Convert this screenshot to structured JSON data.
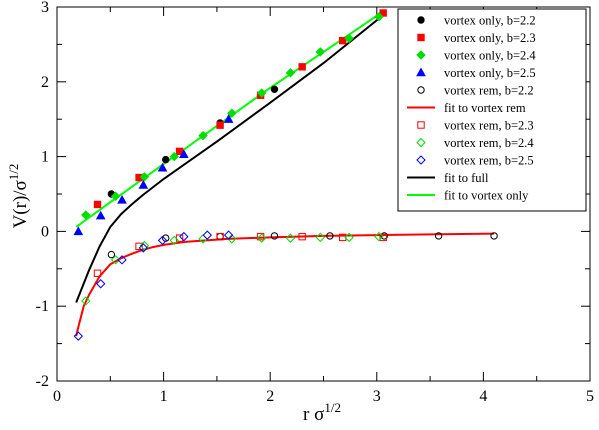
{
  "chart_data": {
    "type": "scatter",
    "xlabel": {
      "main": "r σ",
      "sup": "1/2"
    },
    "ylabel": {
      "main": "V(r)/σ",
      "sup": "1/2"
    },
    "xlim": [
      0,
      5
    ],
    "ylim": [
      -2,
      3
    ],
    "xticks": [
      "0",
      "1",
      "2",
      "3",
      "4",
      "5"
    ],
    "yticks": [
      "-2",
      "-1",
      "0",
      "1",
      "2",
      "3"
    ],
    "legend_position": "top-right",
    "grid": false,
    "series": [
      {
        "name": "vortex only, b=2.2",
        "kind": "points",
        "marker": "circle-filled",
        "color": "#000000",
        "points": [
          [
            0.51,
            0.5
          ],
          [
            1.02,
            0.96
          ],
          [
            1.53,
            1.45
          ],
          [
            2.04,
            1.9
          ]
        ]
      },
      {
        "name": "vortex only, b=2.3",
        "kind": "points",
        "marker": "square-filled",
        "color": "#ff0000",
        "points": [
          [
            0.38,
            0.36
          ],
          [
            0.77,
            0.72
          ],
          [
            1.15,
            1.07
          ],
          [
            1.53,
            1.42
          ],
          [
            1.91,
            1.82
          ],
          [
            2.3,
            2.2
          ],
          [
            2.68,
            2.55
          ],
          [
            3.06,
            2.92
          ]
        ]
      },
      {
        "name": "vortex only, b=2.4",
        "kind": "points",
        "marker": "diamond-filled",
        "color": "#00dd00",
        "points": [
          [
            0.27,
            0.22
          ],
          [
            0.55,
            0.47
          ],
          [
            0.82,
            0.73
          ],
          [
            1.1,
            1.0
          ],
          [
            1.37,
            1.28
          ],
          [
            1.64,
            1.58
          ],
          [
            1.92,
            1.85
          ],
          [
            2.19,
            2.12
          ],
          [
            2.47,
            2.4
          ],
          [
            2.74,
            2.58
          ],
          [
            3.02,
            2.87
          ]
        ]
      },
      {
        "name": "vortex only, b=2.5",
        "kind": "points",
        "marker": "triangle-filled",
        "color": "#0000ff",
        "points": [
          [
            0.2,
            0.0
          ],
          [
            0.41,
            0.21
          ],
          [
            0.61,
            0.42
          ],
          [
            0.81,
            0.62
          ],
          [
            0.99,
            0.85
          ],
          [
            1.19,
            1.03
          ],
          [
            1.61,
            1.5
          ]
        ]
      },
      {
        "name": "vortex rem,  b=2.2",
        "kind": "points",
        "marker": "circle-open",
        "color": "#000000",
        "points": [
          [
            0.51,
            -0.31
          ],
          [
            1.02,
            -0.09
          ],
          [
            1.53,
            -0.07
          ],
          [
            2.04,
            -0.06
          ],
          [
            2.56,
            -0.06
          ],
          [
            3.07,
            -0.06
          ],
          [
            3.58,
            -0.06
          ],
          [
            4.1,
            -0.06
          ]
        ]
      },
      {
        "name": "fit to vortex rem",
        "kind": "line",
        "color": "#ff0000",
        "points": [
          [
            0.18,
            -1.4
          ],
          [
            0.2,
            -1.28
          ],
          [
            0.25,
            -1.0
          ],
          [
            0.3,
            -0.85
          ],
          [
            0.4,
            -0.6
          ],
          [
            0.5,
            -0.44
          ],
          [
            0.6,
            -0.36
          ],
          [
            0.7,
            -0.3
          ],
          [
            0.8,
            -0.25
          ],
          [
            0.9,
            -0.21
          ],
          [
            1.0,
            -0.18
          ],
          [
            1.2,
            -0.14
          ],
          [
            1.4,
            -0.12
          ],
          [
            1.6,
            -0.1
          ],
          [
            2.0,
            -0.08
          ],
          [
            2.5,
            -0.06
          ],
          [
            3.0,
            -0.05
          ],
          [
            3.5,
            -0.04
          ],
          [
            4.1,
            -0.03
          ]
        ]
      },
      {
        "name": "vortex rem, b=2.3",
        "kind": "points",
        "marker": "square-open",
        "color": "#ff0000",
        "points": [
          [
            0.38,
            -0.56
          ],
          [
            0.77,
            -0.2
          ],
          [
            1.15,
            -0.09
          ],
          [
            1.53,
            -0.07
          ],
          [
            1.91,
            -0.07
          ],
          [
            2.3,
            -0.07
          ],
          [
            2.68,
            -0.08
          ],
          [
            3.06,
            -0.08
          ]
        ]
      },
      {
        "name": "vortex rem, b=2.4",
        "kind": "points",
        "marker": "diamond-open",
        "color": "#00dd00",
        "points": [
          [
            0.27,
            -0.93
          ],
          [
            0.55,
            -0.38
          ],
          [
            0.82,
            -0.19
          ],
          [
            1.1,
            -0.12
          ],
          [
            1.37,
            -0.1
          ],
          [
            1.64,
            -0.1
          ],
          [
            1.92,
            -0.09
          ],
          [
            2.19,
            -0.09
          ],
          [
            2.47,
            -0.08
          ],
          [
            2.74,
            -0.08
          ],
          [
            3.02,
            -0.07
          ]
        ]
      },
      {
        "name": "vortex rem, b=2.5",
        "kind": "points",
        "marker": "diamond-open",
        "color": "#0000ff",
        "points": [
          [
            0.2,
            -1.4
          ],
          [
            0.41,
            -0.7
          ],
          [
            0.61,
            -0.38
          ],
          [
            0.81,
            -0.22
          ],
          [
            0.99,
            -0.12
          ],
          [
            1.19,
            -0.07
          ],
          [
            1.41,
            -0.05
          ],
          [
            1.61,
            -0.05
          ]
        ]
      },
      {
        "name": "fit to full",
        "kind": "line",
        "color": "#000000",
        "points": [
          [
            0.18,
            -0.95
          ],
          [
            0.3,
            -0.52
          ],
          [
            0.4,
            -0.2
          ],
          [
            0.5,
            0.06
          ],
          [
            0.6,
            0.23
          ],
          [
            0.7,
            0.36
          ],
          [
            0.8,
            0.48
          ],
          [
            1.0,
            0.7
          ],
          [
            1.2,
            0.9
          ],
          [
            1.5,
            1.2
          ],
          [
            2.0,
            1.72
          ],
          [
            2.5,
            2.25
          ],
          [
            3.05,
            2.88
          ]
        ]
      },
      {
        "name": "fit to vortex only",
        "kind": "line",
        "color": "#00ff00",
        "points": [
          [
            0.18,
            0.06
          ],
          [
            0.5,
            0.39
          ],
          [
            1.0,
            0.9
          ],
          [
            1.5,
            1.41
          ],
          [
            2.0,
            1.92
          ],
          [
            2.5,
            2.4
          ],
          [
            3.05,
            2.93
          ]
        ]
      }
    ]
  }
}
